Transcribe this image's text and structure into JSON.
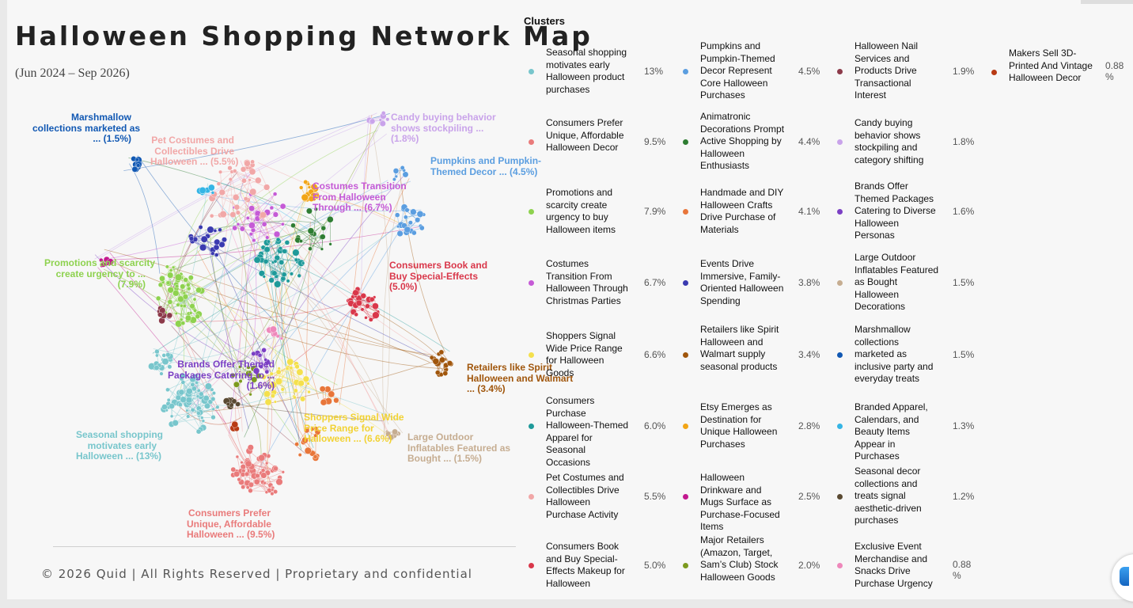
{
  "title": "Halloween Shopping Network Map",
  "date_range": "(Jun 2024 – Sep 2026)",
  "footer": "© 2026 Quid | All Rights Reserved | Proprietary and confidential",
  "legend_title": "Clusters",
  "clusters": [
    {
      "name": "Seasonal shopping motivates early Halloween product purchases",
      "pct": "13%",
      "color": "#78c6cc"
    },
    {
      "name": "Consumers Prefer Unique, Affordable Halloween Decor",
      "pct": "9.5%",
      "color": "#e97b7b"
    },
    {
      "name": "Promotions and scarcity create urgency to buy Halloween items",
      "pct": "7.9%",
      "color": "#8ed24f"
    },
    {
      "name": "Costumes Transition From Halloween Through Christmas Parties",
      "pct": "6.7%",
      "color": "#c55ad6"
    },
    {
      "name": "Shoppers Signal Wide Price Range for Halloween Goods",
      "pct": "6.6%",
      "color": "#f4e04d"
    },
    {
      "name": "Consumers Purchase Halloween-Themed Apparel for Seasonal Occasions",
      "pct": "6.0%",
      "color": "#1f9a9a"
    },
    {
      "name": "Pet Costumes and Collectibles Drive Halloween Purchase Activity",
      "pct": "5.5%",
      "color": "#f1a7a7"
    },
    {
      "name": "Consumers Book and Buy Special-Effects Makeup for Halloween",
      "pct": "5.0%",
      "color": "#d9374a"
    },
    {
      "name": "Pumpkins and Pumpkin-Themed Decor Represent Core Halloween Purchases",
      "pct": "4.5%",
      "color": "#5b9ee0"
    },
    {
      "name": "Animatronic Decorations Prompt Active Shopping by Halloween Enthusiasts",
      "pct": "4.4%",
      "color": "#2e7d32"
    },
    {
      "name": "Handmade and DIY Halloween Crafts Drive Purchase of Materials",
      "pct": "4.1%",
      "color": "#e8763a"
    },
    {
      "name": "Events Drive Immersive, Family-Oriented Halloween Spending",
      "pct": "3.8%",
      "color": "#3a3ab0"
    },
    {
      "name": "Retailers like Spirit Halloween and Walmart supply seasonal products",
      "pct": "3.4%",
      "color": "#a0560c"
    },
    {
      "name": "Etsy Emerges as Destination for Unique Halloween Purchases",
      "pct": "2.8%",
      "color": "#f2a516"
    },
    {
      "name": "Halloween Drinkware and Mugs Surface as Purchase-Focused Items",
      "pct": "2.5%",
      "color": "#c2188f"
    },
    {
      "name": "Major Retailers (Amazon, Target, Sam’s Club) Stock Halloween Goods",
      "pct": "2.0%",
      "color": "#7c9a1f"
    },
    {
      "name": "Halloween Nail Services and Products Drive Transactional Interest",
      "pct": "1.9%",
      "color": "#8c3a4a"
    },
    {
      "name": "Candy buying behavior shows stockpiling and category shifting",
      "pct": "1.8%",
      "color": "#c9a3ea"
    },
    {
      "name": "Brands Offer Themed Packages Catering to Diverse Halloween Personas",
      "pct": "1.6%",
      "color": "#7b3fc4"
    },
    {
      "name": "Large Outdoor Inflatables Featured as Bought Halloween Decorations",
      "pct": "1.5%",
      "color": "#c6ad91"
    },
    {
      "name": "Marshmallow collections marketed as inclusive party and everyday treats",
      "pct": "1.5%",
      "color": "#1158b3"
    },
    {
      "name": "Branded Apparel, Calendars, and Beauty Items Appear in Purchases",
      "pct": "1.3%",
      "color": "#35b5e5"
    },
    {
      "name": "Seasonal decor collections and treats signal aesthetic-driven purchases",
      "pct": "1.2%",
      "color": "#5a4a32"
    },
    {
      "name": "Exclusive Event Merchandise and Snacks Drive Purchase Urgency",
      "pct": "0.88 %",
      "color": "#ee88bb"
    },
    {
      "name": "Makers Sell 3D-Printed And Vintage Halloween Decor",
      "pct": "0.88 %",
      "color": "#b83a14"
    }
  ],
  "map_labels": [
    {
      "text": [
        "Marshmallow",
        "collections marketed as",
        "... (1.5%)"
      ],
      "color": "#1158b3"
    },
    {
      "text": [
        "Pet Costumes and",
        "Collectibles Drive",
        "Halloween ... (5.5%)"
      ],
      "color": "#f1a7a7"
    },
    {
      "text": [
        "Candy buying behavior",
        "shows stockpiling ...",
        "(1.8%)"
      ],
      "color": "#c9a3ea"
    },
    {
      "text": [
        "Costumes Transition",
        "From Halloween",
        "Through ... (6.7%)"
      ],
      "color": "#c55ad6"
    },
    {
      "text": [
        "Pumpkins and Pumpkin-",
        "Themed Decor ... (4.5%)"
      ],
      "color": "#5b9ee0"
    },
    {
      "text": [
        "Promotions and scarcity",
        "create urgency to ...",
        "(7.9%)"
      ],
      "color": "#8ed24f"
    },
    {
      "text": [
        "Consumers Book and",
        "Buy Special-Effects",
        "(5.0%)"
      ],
      "color": "#d9374a"
    },
    {
      "text": [
        "Brands Offer Themed",
        "Packages Catering to ...",
        "(1.6%)"
      ],
      "color": "#7b3fc4"
    },
    {
      "text": [
        "Retailers like Spirit",
        "Halloween and Walmart",
        "... (3.4%)"
      ],
      "color": "#a0560c"
    },
    {
      "text": [
        "Shoppers Signal Wide",
        "Price Range for",
        "Halloween ... (6.6%)"
      ],
      "color": "#f2d233"
    },
    {
      "text": [
        "Large Outdoor",
        "Inflatables Featured as",
        "Bought ... (1.5%)"
      ],
      "color": "#c6ad91"
    },
    {
      "text": [
        "Seasonal shopping",
        "motivates early",
        "Halloween ... (13%)"
      ],
      "color": "#78c6cc"
    },
    {
      "text": [
        "Consumers Prefer",
        "Unique, Affordable",
        "Halloween ... (9.5%)"
      ],
      "color": "#e97b7b"
    }
  ]
}
